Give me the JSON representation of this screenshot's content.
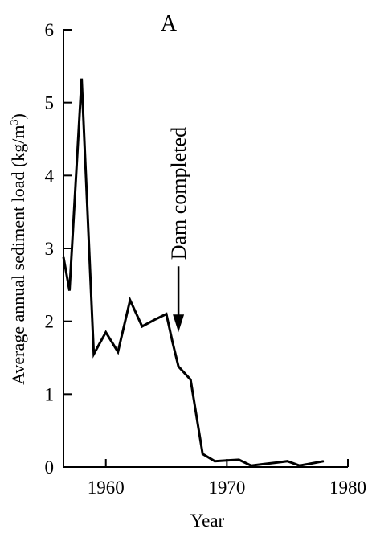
{
  "chart_data": {
    "type": "line",
    "panel_label": "A",
    "xlabel": "Year",
    "ylabel": "Average annual sediment load  (kg/m",
    "ylabel_superscript": "3",
    "ylabel_close": ")",
    "xlim": [
      1956.5,
      1980
    ],
    "ylim": [
      0,
      6
    ],
    "xticks": [
      1960,
      1970,
      1980
    ],
    "yticks": [
      0,
      1,
      2,
      3,
      4,
      5,
      6
    ],
    "grid": false,
    "annotation": {
      "text": "Dam completed",
      "x": 1966,
      "y": 1.85
    },
    "series": [
      {
        "x": [
          1956.5,
          1957,
          1958,
          1959,
          1960,
          1961,
          1962,
          1963,
          1964,
          1965,
          1965.5,
          1966,
          1967,
          1968,
          1969,
          1970,
          1971,
          1972,
          1973,
          1974,
          1975,
          1976,
          1977,
          1978
        ],
        "y": [
          2.88,
          2.42,
          5.33,
          1.55,
          1.85,
          1.58,
          2.29,
          1.93,
          2.02,
          2.1,
          1.72,
          1.38,
          1.2,
          0.18,
          0.08,
          0.09,
          0.1,
          0.02,
          0.04,
          0.06,
          0.08,
          0.02,
          0.05,
          0.08
        ]
      }
    ]
  }
}
